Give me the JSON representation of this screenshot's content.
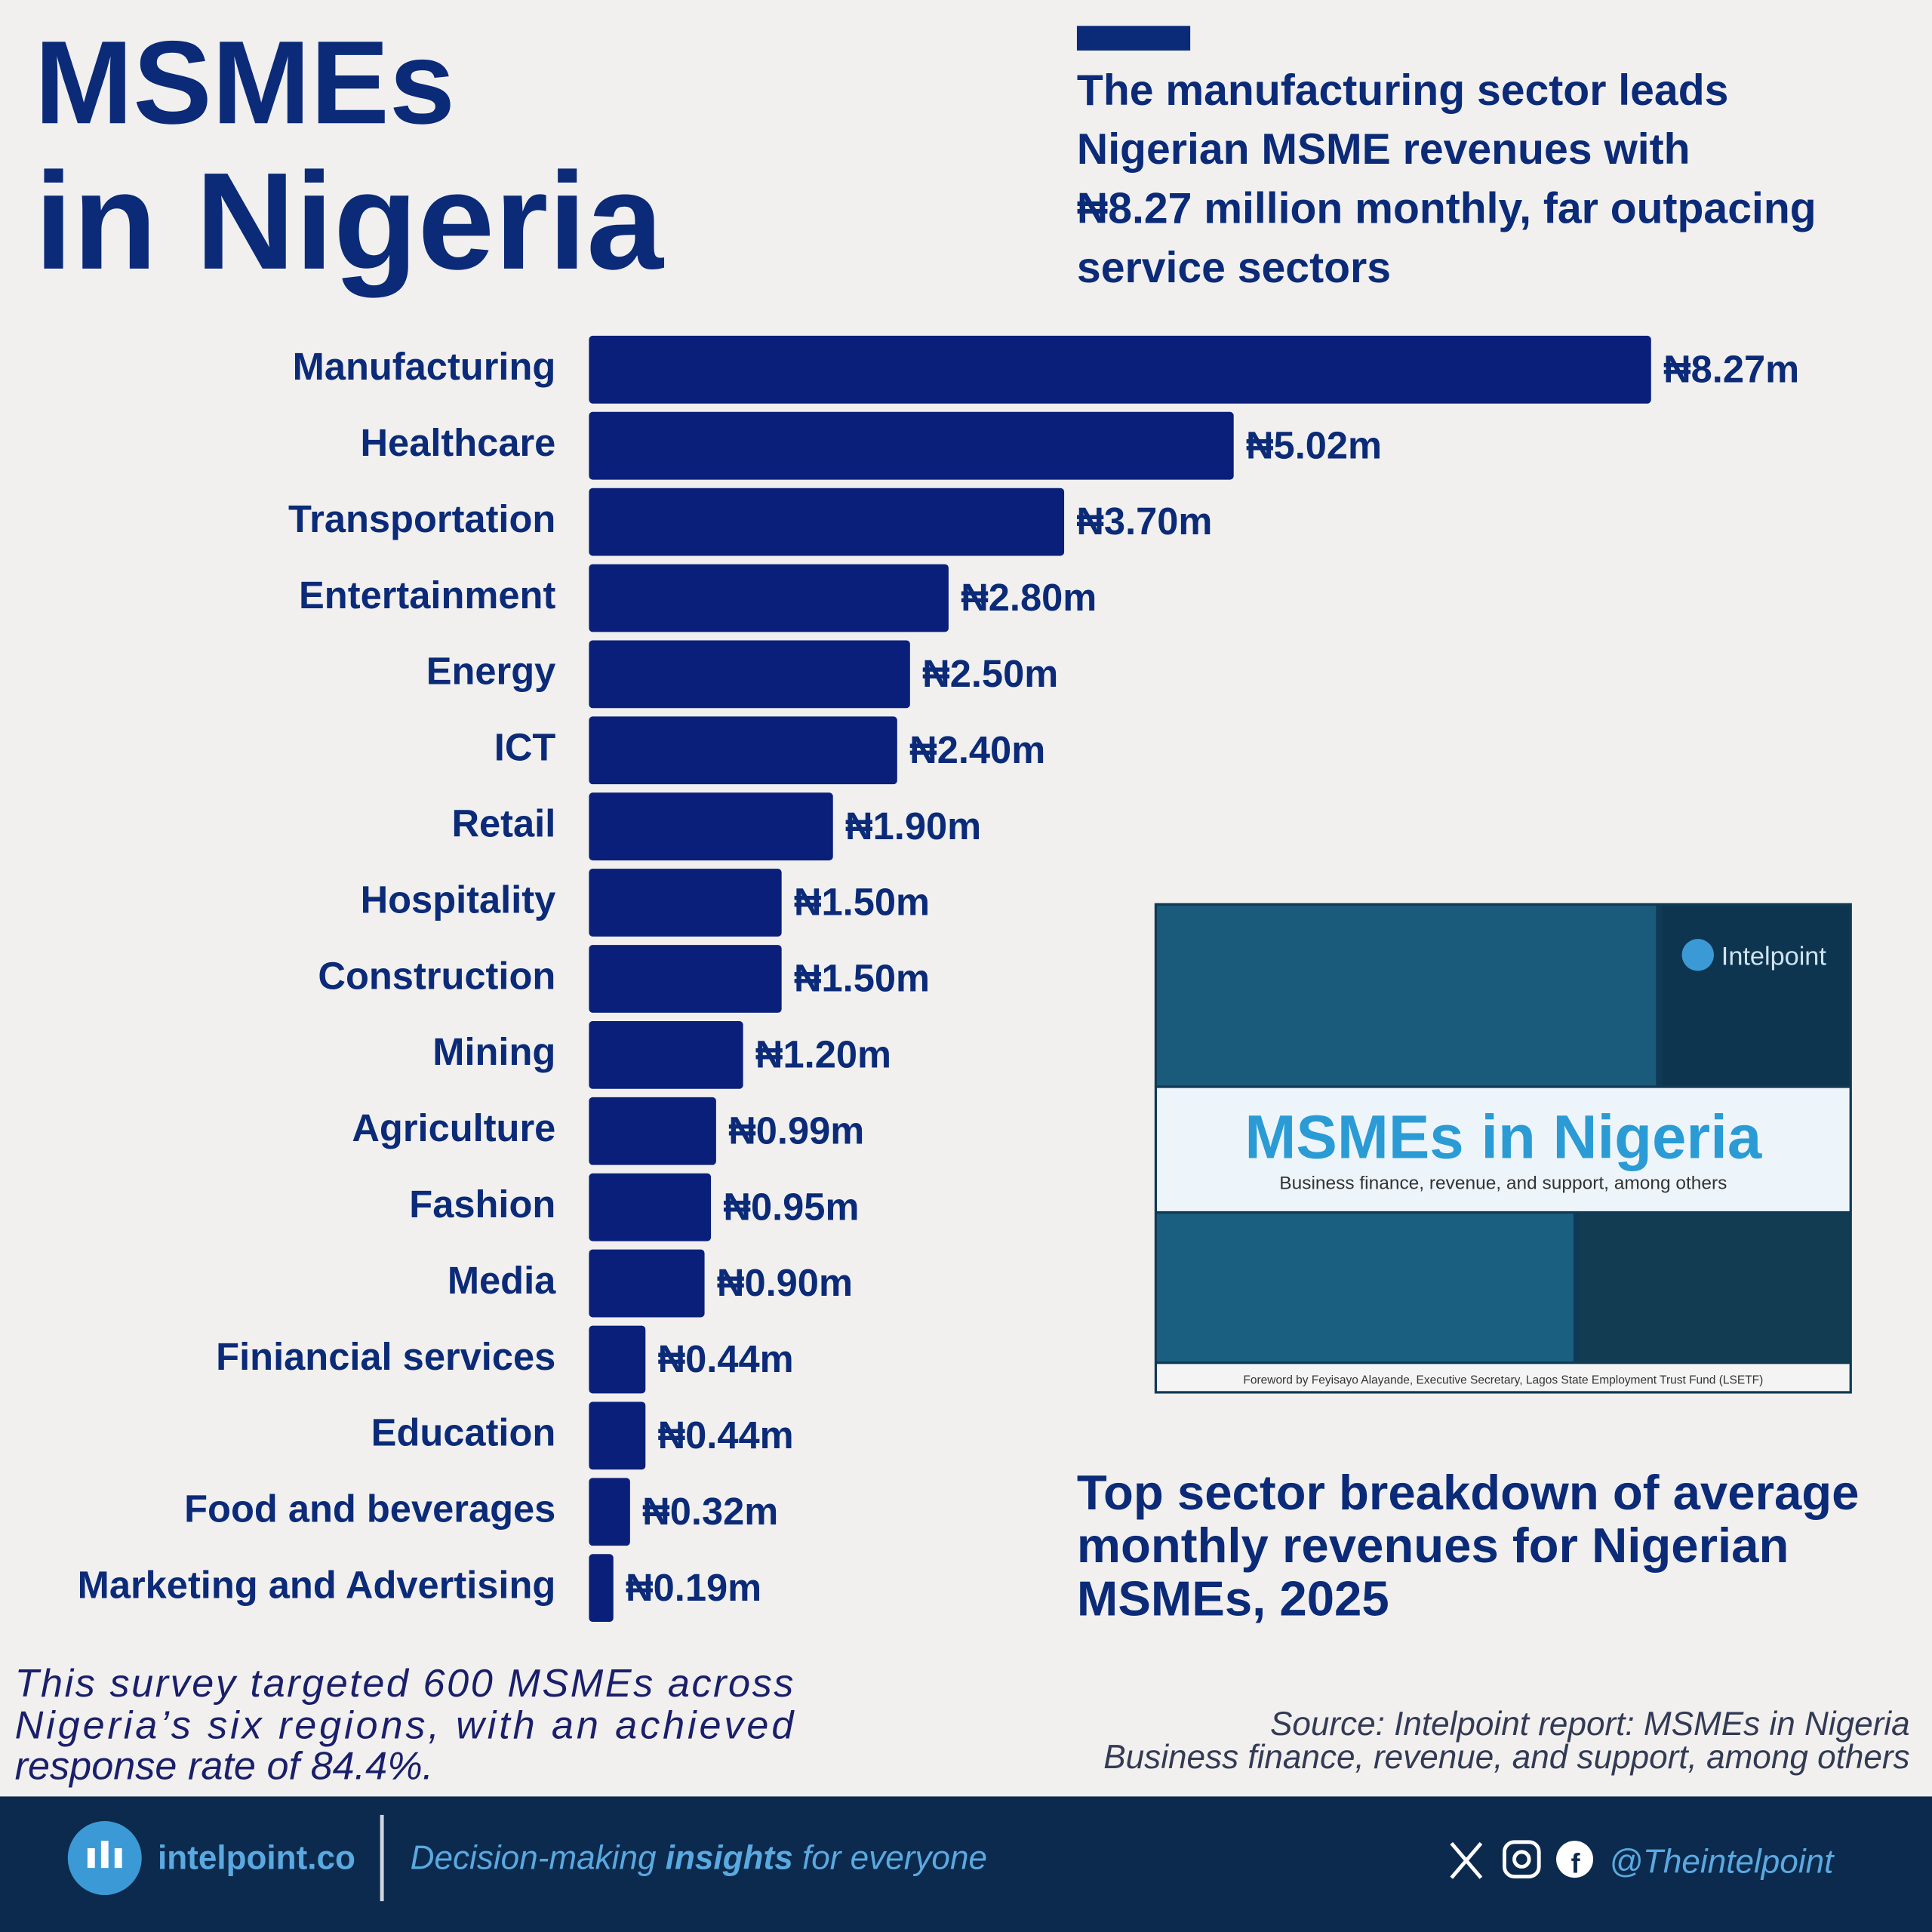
{
  "header": {
    "title_lines": [
      "MSMEs",
      "in Nigeria"
    ],
    "headline_lines": [
      "The manufacturing sector leads",
      "Nigerian MSME revenues with",
      "₦8.27 million monthly, far outpacing",
      "service sectors"
    ]
  },
  "chart_data": {
    "type": "bar",
    "orientation": "horizontal",
    "title_lines": [
      "Top sector breakdown of average",
      "monthly revenues for Nigerian",
      "MSMEs, 2025"
    ],
    "categories": [
      "Manufacturing",
      "Healthcare",
      "Transportation",
      "Entertainment",
      "Energy",
      "ICT",
      "Retail",
      "Hospitality",
      "Construction",
      "Mining",
      "Agriculture",
      "Fashion",
      "Media",
      "Finiancial services",
      "Education",
      "Food and beverages",
      "Marketing and Advertising"
    ],
    "values": [
      8.27,
      5.02,
      3.7,
      2.8,
      2.5,
      2.4,
      1.9,
      1.5,
      1.5,
      1.2,
      0.99,
      0.95,
      0.9,
      0.44,
      0.44,
      0.32,
      0.19
    ],
    "value_labels": [
      "₦8.27m",
      "₦5.02m",
      "₦3.70m",
      "₦2.80m",
      "₦2.50m",
      "₦2.40m",
      "₦1.90m",
      "₦1.50m",
      "₦1.50m",
      "₦1.20m",
      "₦0.99m",
      "₦0.95m",
      "₦0.90m",
      "₦0.44m",
      "₦0.44m",
      "₦0.32m",
      "₦0.19m"
    ],
    "color": "#0a1f7a"
  },
  "note_lines": [
    "This survey targeted 600 MSMEs across",
    "Nigeria’s six regions, with an achieved",
    "response rate of 84.4%."
  ],
  "source_lines": [
    "Source: Intelpoint report: MSMEs in Nigeria",
    "Business finance, revenue, and support, among others"
  ],
  "report_cover": {
    "brand": "Intelpoint",
    "title": "MSMEs in Nigeria",
    "subtitle": "Business finance, revenue, and support, among others",
    "foreword": "Foreword by Feyisayo Alayande, Executive Secretary, Lagos State Employment Trust Fund (LSETF)"
  },
  "footer": {
    "site": "intelpoint.co",
    "tagline_parts": [
      "Decision-making ",
      "insights",
      " for everyone"
    ],
    "handle": "@Theintelpoint"
  }
}
